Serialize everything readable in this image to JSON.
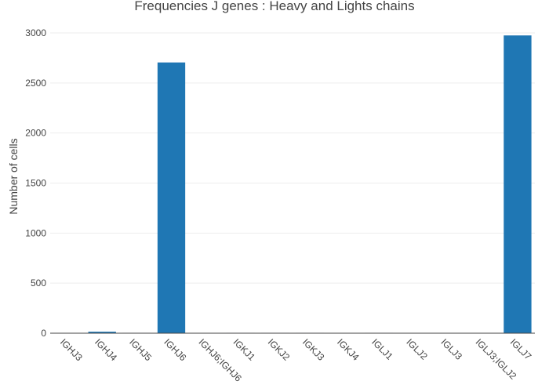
{
  "chart_data": {
    "type": "bar",
    "title": "Frequencies J genes : Heavy and Lights chains",
    "xlabel": "",
    "ylabel": "Number of cells",
    "categories": [
      "IGHJ3",
      "IGHJ4",
      "IGHJ5",
      "IGHJ6",
      "IGHJ6;IGHJ6",
      "IGKJ1",
      "IGKJ2",
      "IGKJ3",
      "IGKJ4",
      "IGLJ1",
      "IGLJ2",
      "IGLJ3",
      "IGLJ3;IGLJ2",
      "IGLJ7"
    ],
    "values": [
      3,
      15,
      4,
      2705,
      2,
      4,
      4,
      4,
      3,
      4,
      3,
      3,
      2,
      2975
    ],
    "ylim": [
      0,
      3000
    ],
    "yticks": [
      0,
      500,
      1000,
      1500,
      2000,
      2500,
      3000
    ],
    "bar_color": "#1f77b4",
    "grid": true,
    "legend": false
  }
}
